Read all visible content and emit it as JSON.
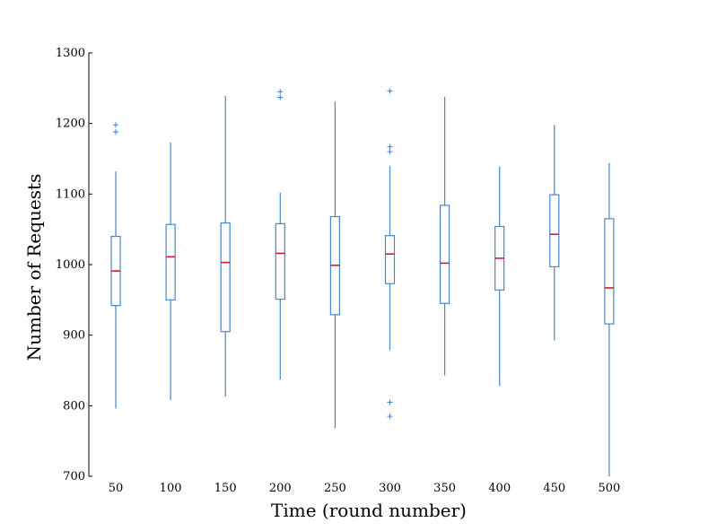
{
  "chart_data": {
    "type": "boxplot",
    "xlabel": "Time (round number)",
    "ylabel": "Number of Requests",
    "ylim": [
      700,
      1300
    ],
    "yticks": [
      700,
      800,
      900,
      1000,
      1100,
      1200,
      1300
    ],
    "box_color": "#4a86c5",
    "median_color": "#d11a2a",
    "series": [
      {
        "category": "50",
        "q1": 942,
        "median": 991,
        "q3": 1040,
        "whisker_low": 796,
        "whisker_high": 1132,
        "outliers": [
          1188,
          1198
        ]
      },
      {
        "category": "100",
        "q1": 950,
        "median": 1011,
        "q3": 1057,
        "whisker_low": 808,
        "whisker_high": 1173,
        "outliers": []
      },
      {
        "category": "150",
        "q1": 905,
        "median": 1003,
        "q3": 1059,
        "whisker_low": 813,
        "whisker_high": 1239,
        "outliers": []
      },
      {
        "category": "200",
        "q1": 951,
        "median": 1016,
        "q3": 1058,
        "whisker_low": 837,
        "whisker_high": 1102,
        "outliers": [
          1237,
          1245
        ]
      },
      {
        "category": "250",
        "q1": 929,
        "median": 999,
        "q3": 1068,
        "whisker_low": 768,
        "whisker_high": 1231,
        "outliers": []
      },
      {
        "category": "300",
        "q1": 973,
        "median": 1015,
        "q3": 1041,
        "whisker_low": 879,
        "whisker_high": 1140,
        "outliers": [
          785,
          805,
          1160,
          1167,
          1246
        ]
      },
      {
        "category": "350",
        "q1": 945,
        "median": 1002,
        "q3": 1084,
        "whisker_low": 843,
        "whisker_high": 1238,
        "outliers": []
      },
      {
        "category": "400",
        "q1": 964,
        "median": 1009,
        "q3": 1054,
        "whisker_low": 828,
        "whisker_high": 1139,
        "outliers": []
      },
      {
        "category": "450",
        "q1": 997,
        "median": 1043,
        "q3": 1099,
        "whisker_low": 893,
        "whisker_high": 1198,
        "outliers": []
      },
      {
        "category": "500",
        "q1": 916,
        "median": 967,
        "q3": 1065,
        "whisker_low": 700,
        "whisker_high": 1144,
        "outliers": []
      }
    ]
  }
}
